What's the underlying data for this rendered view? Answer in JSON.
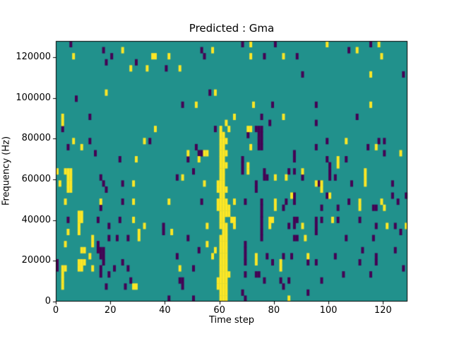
{
  "figure": {
    "title": "Predicted : Gma",
    "xlabel": "Time step",
    "ylabel": "Frequency (Hz)"
  },
  "chart_data": {
    "type": "heatmap",
    "title": "Predicted : Gma",
    "xlabel": "Time step",
    "ylabel": "Frequency (Hz)",
    "x_tick_labels": [
      0,
      20,
      40,
      60,
      80,
      100,
      120
    ],
    "y_tick_labels": [
      0,
      20000,
      40000,
      60000,
      80000,
      100000,
      120000
    ],
    "x_range": [
      0,
      129
    ],
    "y_range_hz": [
      0,
      128000
    ],
    "grid": {
      "cols": 129,
      "rows": 43
    },
    "legend": "none",
    "colors": {
      "mid_value": "#21918c",
      "high_value": "#fde725",
      "low_value": "#440154",
      "figure_bg": "#ffffff",
      "spine": "#000000"
    },
    "cells_high": [
      [
        24,
        41
      ],
      [
        6,
        40
      ],
      [
        27,
        38
      ],
      [
        57,
        41
      ],
      [
        35,
        40
      ],
      [
        36,
        40
      ],
      [
        41,
        40
      ],
      [
        33,
        38
      ],
      [
        45,
        38
      ],
      [
        71,
        42
      ],
      [
        71,
        40
      ],
      [
        83,
        40
      ],
      [
        99,
        42
      ],
      [
        118,
        42
      ],
      [
        110,
        41
      ],
      [
        119,
        40
      ],
      [
        115,
        37
      ],
      [
        18,
        34
      ],
      [
        2,
        30
      ],
      [
        2,
        29
      ],
      [
        58,
        34
      ],
      [
        51,
        32
      ],
      [
        62,
        29
      ],
      [
        63,
        28
      ],
      [
        72,
        32
      ],
      [
        65,
        30
      ],
      [
        83,
        30
      ],
      [
        115,
        32
      ],
      [
        36,
        28
      ],
      [
        70,
        28
      ],
      [
        71,
        28
      ],
      [
        6,
        26
      ],
      [
        32,
        26
      ],
      [
        9,
        25
      ],
      [
        29,
        23
      ],
      [
        0,
        21
      ],
      [
        3,
        21
      ],
      [
        4,
        21
      ],
      [
        5,
        21
      ],
      [
        4,
        20
      ],
      [
        5,
        20
      ],
      [
        1,
        19
      ],
      [
        4,
        19
      ],
      [
        5,
        19
      ],
      [
        4,
        18
      ],
      [
        5,
        18
      ],
      [
        28,
        19
      ],
      [
        28,
        16
      ],
      [
        3,
        16
      ],
      [
        16,
        16
      ],
      [
        48,
        24
      ],
      [
        54,
        24
      ],
      [
        55,
        24
      ],
      [
        52,
        23
      ],
      [
        46,
        20
      ],
      [
        54,
        19
      ],
      [
        41,
        16
      ],
      [
        71,
        25
      ],
      [
        70,
        22
      ],
      [
        70,
        21
      ],
      [
        80,
        20
      ],
      [
        84,
        20
      ],
      [
        90,
        21
      ],
      [
        95,
        19
      ],
      [
        97,
        19
      ],
      [
        97,
        18
      ],
      [
        86,
        17
      ],
      [
        80,
        16
      ],
      [
        65,
        16
      ],
      [
        80,
        15
      ],
      [
        106,
        26
      ],
      [
        117,
        25
      ],
      [
        103,
        23
      ],
      [
        103,
        22
      ],
      [
        113,
        21
      ],
      [
        113,
        20
      ],
      [
        113,
        19
      ],
      [
        100,
        17
      ],
      [
        111,
        16
      ],
      [
        119,
        16
      ],
      [
        111,
        15
      ],
      [
        120,
        15
      ],
      [
        126,
        24
      ],
      [
        60,
        28
      ],
      [
        60,
        27
      ],
      [
        61,
        27
      ],
      [
        60,
        26
      ],
      [
        61,
        26
      ],
      [
        62,
        26
      ],
      [
        60,
        25
      ],
      [
        61,
        25
      ],
      [
        60,
        24
      ],
      [
        61,
        24
      ],
      [
        62,
        24
      ],
      [
        60,
        23
      ],
      [
        61,
        23
      ],
      [
        60,
        22
      ],
      [
        61,
        22
      ],
      [
        62,
        22
      ],
      [
        60,
        21
      ],
      [
        61,
        21
      ],
      [
        60,
        20
      ],
      [
        61,
        20
      ],
      [
        59,
        19
      ],
      [
        60,
        19
      ],
      [
        61,
        19
      ],
      [
        59,
        18
      ],
      [
        60,
        18
      ],
      [
        61,
        18
      ],
      [
        62,
        18
      ],
      [
        60,
        17
      ],
      [
        61,
        17
      ],
      [
        59,
        16
      ],
      [
        60,
        16
      ],
      [
        61,
        16
      ],
      [
        62,
        16
      ],
      [
        59,
        15
      ],
      [
        60,
        15
      ],
      [
        61,
        15
      ],
      [
        62,
        15
      ],
      [
        63,
        15
      ],
      [
        60,
        14
      ],
      [
        61,
        14
      ],
      [
        62,
        14
      ],
      [
        63,
        14
      ],
      [
        60,
        13
      ],
      [
        61,
        13
      ],
      [
        64,
        13
      ],
      [
        60,
        12
      ],
      [
        61,
        12
      ],
      [
        62,
        12
      ],
      [
        61,
        11
      ],
      [
        62,
        11
      ],
      [
        60,
        10
      ],
      [
        61,
        10
      ],
      [
        62,
        10
      ],
      [
        60,
        9
      ],
      [
        61,
        9
      ],
      [
        62,
        9
      ],
      [
        60,
        8
      ],
      [
        61,
        8
      ],
      [
        62,
        8
      ],
      [
        60,
        7
      ],
      [
        61,
        7
      ],
      [
        62,
        7
      ],
      [
        60,
        6
      ],
      [
        61,
        6
      ],
      [
        62,
        6
      ],
      [
        60,
        5
      ],
      [
        61,
        5
      ],
      [
        62,
        5
      ],
      [
        60,
        4
      ],
      [
        61,
        4
      ],
      [
        62,
        4
      ],
      [
        63,
        4
      ],
      [
        59,
        3
      ],
      [
        60,
        3
      ],
      [
        61,
        3
      ],
      [
        62,
        3
      ],
      [
        59,
        2
      ],
      [
        60,
        2
      ],
      [
        61,
        2
      ],
      [
        62,
        2
      ],
      [
        60,
        1
      ],
      [
        61,
        1
      ],
      [
        62,
        1
      ],
      [
        60,
        0
      ],
      [
        61,
        0
      ],
      [
        62,
        0
      ],
      [
        8,
        14
      ],
      [
        9,
        14
      ],
      [
        8,
        13
      ],
      [
        9,
        13
      ],
      [
        8,
        12
      ],
      [
        8,
        11
      ],
      [
        4,
        11
      ],
      [
        30,
        11
      ],
      [
        30,
        10
      ],
      [
        13,
        10
      ],
      [
        13,
        9
      ],
      [
        3,
        9
      ],
      [
        9,
        8
      ],
      [
        10,
        8
      ],
      [
        12,
        7
      ],
      [
        8,
        6
      ],
      [
        9,
        6
      ],
      [
        10,
        6
      ],
      [
        8,
        5
      ],
      [
        9,
        5
      ],
      [
        13,
        5
      ],
      [
        2,
        5
      ],
      [
        3,
        5
      ],
      [
        2,
        4
      ],
      [
        2,
        3
      ],
      [
        2,
        2
      ],
      [
        28,
        2
      ],
      [
        29,
        2
      ],
      [
        28,
        13
      ],
      [
        32,
        12
      ],
      [
        42,
        11
      ],
      [
        55,
        12
      ],
      [
        55,
        9
      ],
      [
        58,
        8
      ],
      [
        57,
        7
      ],
      [
        45,
        5
      ],
      [
        65,
        13
      ],
      [
        65,
        12
      ],
      [
        78,
        13
      ],
      [
        79,
        13
      ],
      [
        78,
        12
      ],
      [
        90,
        12
      ],
      [
        91,
        10
      ],
      [
        73,
        7
      ],
      [
        73,
        6
      ],
      [
        82,
        6
      ],
      [
        82,
        5
      ],
      [
        92,
        7
      ],
      [
        85,
        0
      ],
      [
        101,
        13
      ],
      [
        121,
        12
      ],
      [
        128,
        12
      ]
    ],
    "cells_low": [
      [
        5,
        42
      ],
      [
        17,
        41
      ],
      [
        20,
        40
      ],
      [
        18,
        39
      ],
      [
        29,
        39
      ],
      [
        53,
        41
      ],
      [
        54,
        40
      ],
      [
        40,
        38
      ],
      [
        68,
        42
      ],
      [
        80,
        42
      ],
      [
        76,
        40
      ],
      [
        88,
        40
      ],
      [
        90,
        37
      ],
      [
        115,
        42
      ],
      [
        107,
        41
      ],
      [
        127,
        37
      ],
      [
        7,
        33
      ],
      [
        12,
        30
      ],
      [
        56,
        34
      ],
      [
        46,
        32
      ],
      [
        58,
        28
      ],
      [
        79,
        32
      ],
      [
        95,
        32
      ],
      [
        75,
        30
      ],
      [
        78,
        29
      ],
      [
        95,
        29
      ],
      [
        110,
        30
      ],
      [
        2,
        28
      ],
      [
        12,
        26
      ],
      [
        4,
        25
      ],
      [
        14,
        24
      ],
      [
        23,
        23
      ],
      [
        16,
        20
      ],
      [
        24,
        19
      ],
      [
        17,
        19
      ],
      [
        18,
        18
      ],
      [
        24,
        16
      ],
      [
        16,
        15
      ],
      [
        34,
        26
      ],
      [
        51,
        25
      ],
      [
        52,
        24
      ],
      [
        53,
        24
      ],
      [
        48,
        23
      ],
      [
        50,
        21
      ],
      [
        44,
        20
      ],
      [
        53,
        16
      ],
      [
        73,
        28
      ],
      [
        74,
        28
      ],
      [
        75,
        28
      ],
      [
        70,
        27
      ],
      [
        74,
        27
      ],
      [
        75,
        27
      ],
      [
        74,
        26
      ],
      [
        75,
        26
      ],
      [
        74,
        25
      ],
      [
        75,
        25
      ],
      [
        95,
        25
      ],
      [
        87,
        24
      ],
      [
        68,
        23
      ],
      [
        87,
        23
      ],
      [
        68,
        22
      ],
      [
        68,
        21
      ],
      [
        85,
        21
      ],
      [
        87,
        21
      ],
      [
        76,
        21
      ],
      [
        76,
        20
      ],
      [
        77,
        20
      ],
      [
        90,
        20
      ],
      [
        73,
        19
      ],
      [
        96,
        19
      ],
      [
        73,
        18
      ],
      [
        87,
        17
      ],
      [
        84,
        16
      ],
      [
        87,
        16
      ],
      [
        69,
        16
      ],
      [
        75,
        16
      ],
      [
        75,
        15
      ],
      [
        83,
        15
      ],
      [
        99,
        26
      ],
      [
        118,
        26
      ],
      [
        120,
        26
      ],
      [
        114,
        25
      ],
      [
        120,
        24
      ],
      [
        99,
        23
      ],
      [
        106,
        23
      ],
      [
        100,
        22
      ],
      [
        100,
        21
      ],
      [
        100,
        20
      ],
      [
        102,
        20
      ],
      [
        108,
        19
      ],
      [
        123,
        19
      ],
      [
        99,
        17
      ],
      [
        123,
        17
      ],
      [
        128,
        17
      ],
      [
        107,
        16
      ],
      [
        125,
        16
      ],
      [
        116,
        15
      ],
      [
        117,
        15
      ],
      [
        103,
        15
      ],
      [
        97,
        15
      ],
      [
        4,
        13
      ],
      [
        15,
        13
      ],
      [
        23,
        13
      ],
      [
        19,
        12
      ],
      [
        19,
        10
      ],
      [
        22,
        10
      ],
      [
        26,
        10
      ],
      [
        15,
        9
      ],
      [
        15,
        8
      ],
      [
        16,
        8
      ],
      [
        17,
        8
      ],
      [
        16,
        7
      ],
      [
        17,
        7
      ],
      [
        17,
        6
      ],
      [
        0,
        6
      ],
      [
        0,
        5
      ],
      [
        16,
        5
      ],
      [
        16,
        4
      ],
      [
        19,
        4
      ],
      [
        21,
        5
      ],
      [
        24,
        6
      ],
      [
        26,
        5
      ],
      [
        18,
        2
      ],
      [
        25,
        2
      ],
      [
        27,
        3
      ],
      [
        50,
        0
      ],
      [
        39,
        12
      ],
      [
        39,
        11
      ],
      [
        48,
        10
      ],
      [
        52,
        8
      ],
      [
        44,
        7
      ],
      [
        50,
        5
      ],
      [
        45,
        3
      ],
      [
        46,
        3
      ],
      [
        46,
        2
      ],
      [
        41,
        0
      ],
      [
        75,
        14
      ],
      [
        75,
        13
      ],
      [
        75,
        12
      ],
      [
        75,
        11
      ],
      [
        75,
        10
      ],
      [
        85,
        12
      ],
      [
        87,
        13
      ],
      [
        88,
        13
      ],
      [
        87,
        12
      ],
      [
        95,
        13
      ],
      [
        95,
        12
      ],
      [
        95,
        11
      ],
      [
        87,
        10
      ],
      [
        88,
        10
      ],
      [
        69,
        9
      ],
      [
        69,
        8
      ],
      [
        69,
        7
      ],
      [
        69,
        6
      ],
      [
        77,
        7
      ],
      [
        79,
        6
      ],
      [
        83,
        7
      ],
      [
        86,
        7
      ],
      [
        92,
        6
      ],
      [
        95,
        6
      ],
      [
        69,
        4
      ],
      [
        73,
        4
      ],
      [
        74,
        4
      ],
      [
        76,
        3
      ],
      [
        82,
        3
      ],
      [
        85,
        3
      ],
      [
        83,
        2
      ],
      [
        68,
        1
      ],
      [
        69,
        0
      ],
      [
        92,
        1
      ],
      [
        97,
        13
      ],
      [
        103,
        13
      ],
      [
        111,
        13
      ],
      [
        117,
        12
      ],
      [
        124,
        12
      ],
      [
        126,
        11
      ],
      [
        106,
        10
      ],
      [
        116,
        10
      ],
      [
        112,
        8
      ],
      [
        124,
        8
      ],
      [
        102,
        7
      ],
      [
        117,
        7
      ],
      [
        117,
        6
      ],
      [
        111,
        6
      ],
      [
        127,
        5
      ],
      [
        105,
        4
      ],
      [
        115,
        4
      ],
      [
        97,
        3
      ]
    ]
  }
}
